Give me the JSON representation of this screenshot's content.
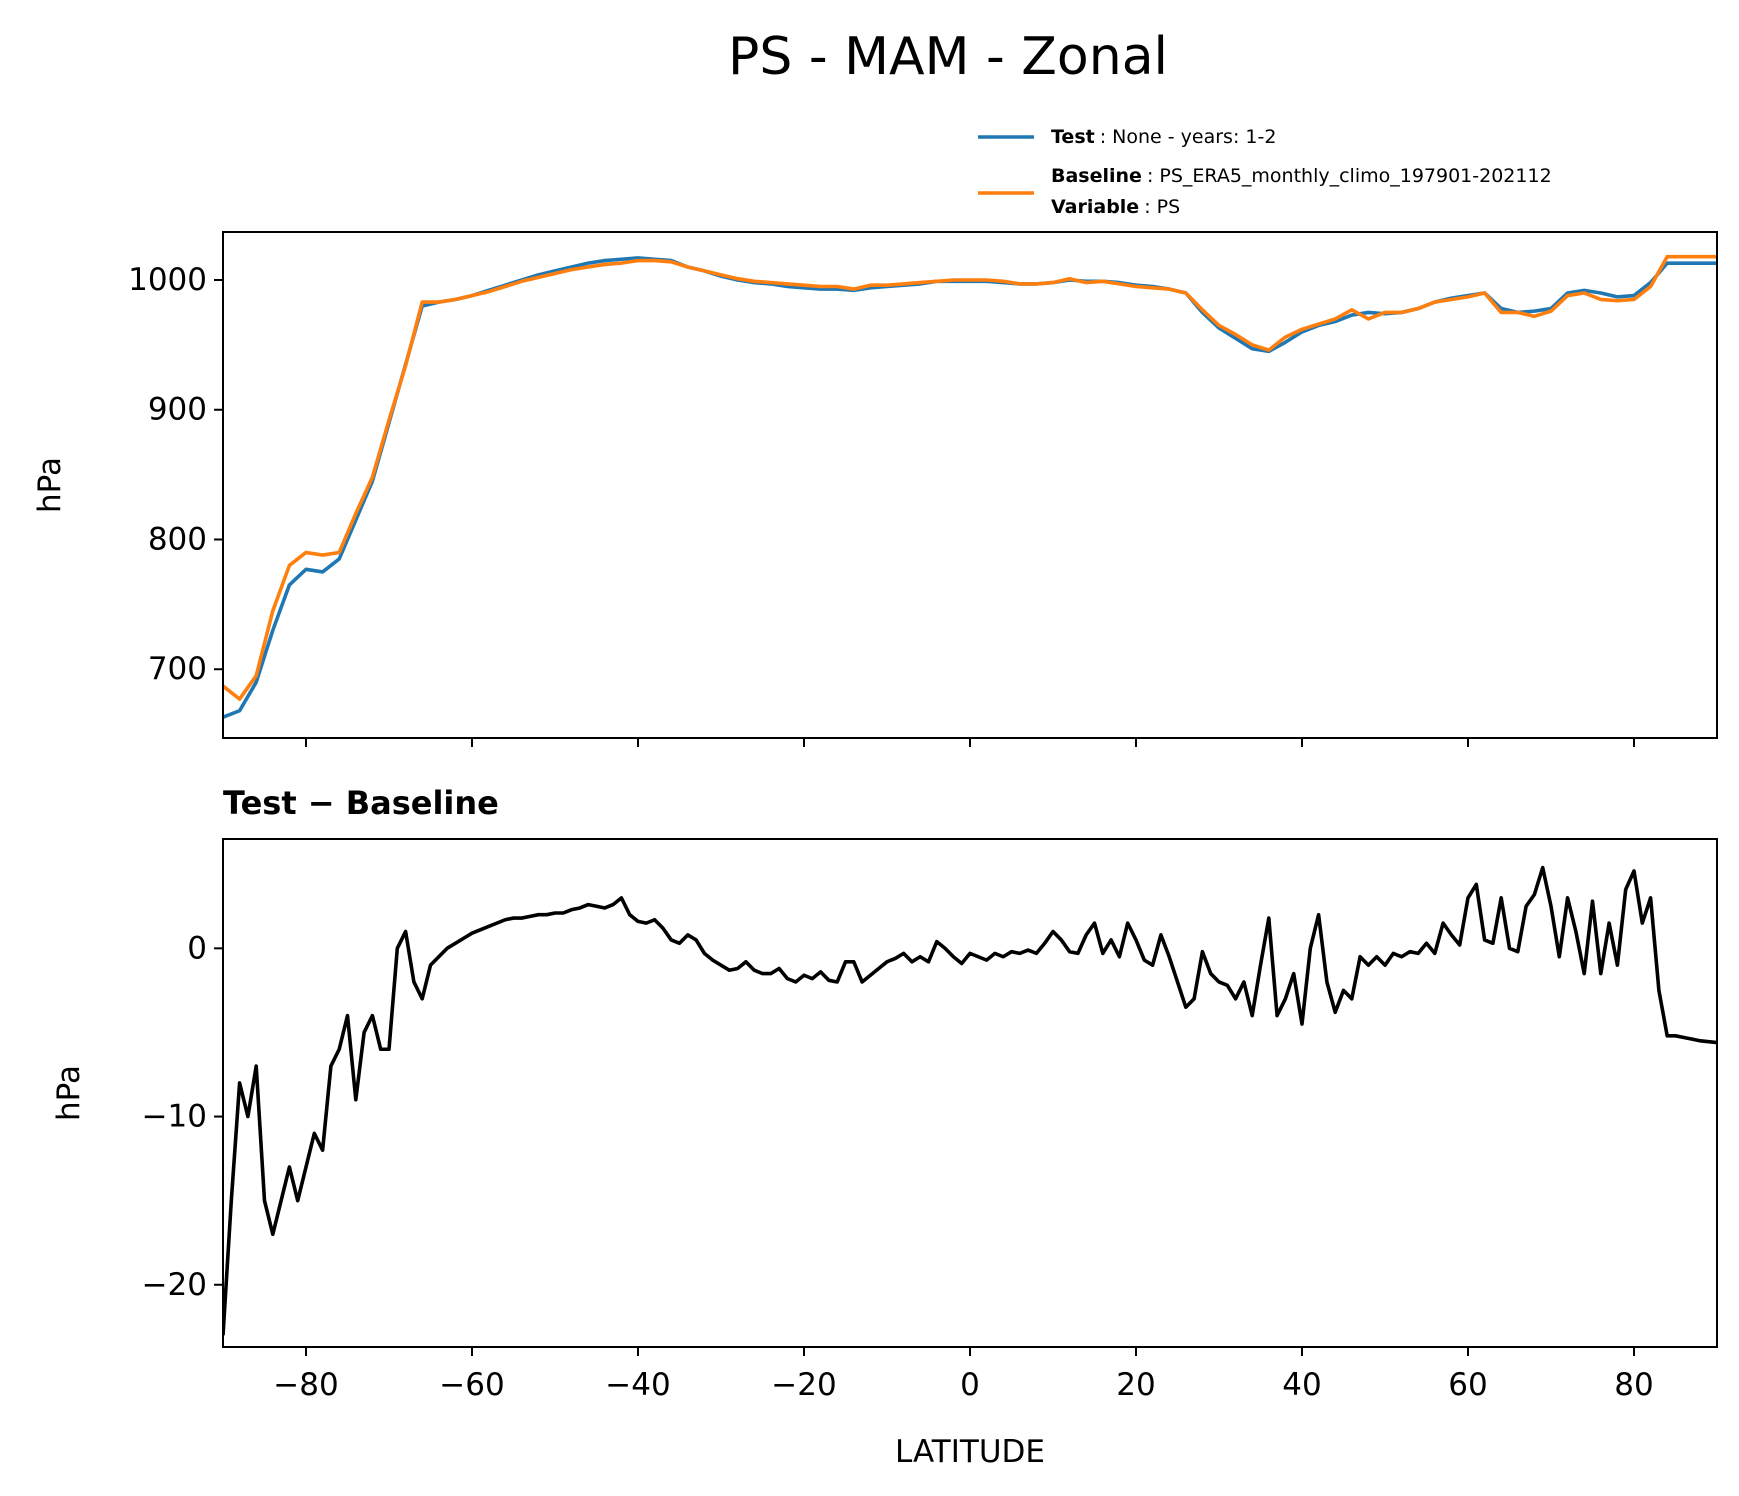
{
  "chart_data": [
    {
      "type": "line",
      "suptitle": "PS - MAM - Zonal",
      "ylabel": "hPa",
      "x": [
        -90,
        -88,
        -86,
        -84,
        -82,
        -80,
        -78,
        -76,
        -74,
        -72,
        -70,
        -68,
        -66,
        -64,
        -62,
        -60,
        -58,
        -56,
        -54,
        -52,
        -50,
        -48,
        -46,
        -44,
        -42,
        -40,
        -38,
        -36,
        -34,
        -32,
        -30,
        -28,
        -26,
        -24,
        -22,
        -20,
        -18,
        -16,
        -14,
        -12,
        -10,
        -8,
        -6,
        -4,
        -2,
        0,
        2,
        4,
        6,
        8,
        10,
        12,
        14,
        16,
        18,
        20,
        22,
        24,
        26,
        28,
        30,
        32,
        34,
        36,
        38,
        40,
        42,
        44,
        46,
        48,
        50,
        52,
        54,
        56,
        58,
        60,
        62,
        64,
        66,
        68,
        70,
        72,
        74,
        76,
        78,
        80,
        82,
        84,
        86,
        88,
        90
      ],
      "series": [
        {
          "name": "Test",
          "detail": ": None - years: 1-2",
          "color": "#1f77b4",
          "values": [
            663,
            668,
            690,
            730,
            765,
            777,
            775,
            785,
            815,
            845,
            890,
            935,
            980,
            983,
            985,
            988,
            992,
            996,
            1000,
            1004,
            1007,
            1010,
            1013,
            1015,
            1016,
            1017,
            1016,
            1015,
            1010,
            1007,
            1003,
            1000,
            998,
            997,
            995,
            994,
            993,
            993,
            992,
            994,
            995,
            996,
            997,
            999,
            999,
            999,
            999,
            998,
            997,
            997,
            998,
            1000,
            999,
            999,
            998,
            996,
            995,
            993,
            990,
            975,
            963,
            955,
            947,
            945,
            952,
            960,
            965,
            968,
            973,
            975,
            974,
            975,
            978,
            983,
            986,
            988,
            990,
            978,
            975,
            976,
            978,
            990,
            992,
            990,
            987,
            988,
            998,
            1013,
            1013,
            1013,
            1013
          ]
        },
        {
          "name": "Baseline",
          "detail": ": PS_ERA5_monthly_climo_197901-202112",
          "color": "#ff7f0e",
          "values": [
            687,
            677,
            695,
            745,
            780,
            790,
            788,
            790,
            820,
            848,
            892,
            934,
            983,
            983,
            985,
            988,
            991,
            995,
            999,
            1002,
            1005,
            1008,
            1010,
            1012,
            1013,
            1015,
            1015,
            1014,
            1010,
            1007,
            1004,
            1001,
            999,
            998,
            997,
            996,
            995,
            995,
            993,
            996,
            996,
            997,
            998,
            999,
            1000,
            1000,
            1000,
            999,
            997,
            997,
            998,
            1001,
            998,
            999,
            997,
            995,
            994,
            993,
            990,
            977,
            965,
            958,
            950,
            946,
            956,
            962,
            966,
            970,
            977,
            970,
            975,
            975,
            978,
            983,
            985,
            987,
            990,
            975,
            975,
            972,
            976,
            988,
            990,
            985,
            984,
            985,
            995,
            1018,
            1018,
            1018,
            1018
          ]
        }
      ],
      "variable_name": "Variable",
      "variable_detail": ": PS",
      "xlim": [
        -90,
        90
      ],
      "ylim": [
        647,
        1037
      ],
      "xticks": [
        -80,
        -60,
        -40,
        -20,
        0,
        20,
        40,
        60,
        80
      ],
      "yticks": [
        700,
        800,
        900,
        1000
      ]
    },
    {
      "type": "line",
      "title": "Test − Baseline",
      "ylabel": "hPa",
      "xlabel": "LATITUDE",
      "x": [
        -90,
        -89,
        -88,
        -87,
        -86,
        -85,
        -84,
        -83,
        -82,
        -81,
        -80,
        -79,
        -78,
        -77,
        -76,
        -75,
        -74,
        -73,
        -72,
        -71,
        -70,
        -69,
        -68,
        -67,
        -66,
        -65,
        -64,
        -63,
        -62,
        -61,
        -60,
        -59,
        -58,
        -57,
        -56,
        -55,
        -54,
        -53,
        -52,
        -51,
        -50,
        -49,
        -48,
        -47,
        -46,
        -45,
        -44,
        -43,
        -42,
        -41,
        -40,
        -39,
        -38,
        -37,
        -36,
        -35,
        -34,
        -33,
        -32,
        -31,
        -30,
        -29,
        -28,
        -27,
        -26,
        -25,
        -24,
        -23,
        -22,
        -21,
        -20,
        -19,
        -18,
        -17,
        -16,
        -15,
        -14,
        -13,
        -12,
        -11,
        -10,
        -9,
        -8,
        -7,
        -6,
        -5,
        -4,
        -3,
        -2,
        -1,
        0,
        1,
        2,
        3,
        4,
        5,
        6,
        7,
        8,
        9,
        10,
        11,
        12,
        13,
        14,
        15,
        16,
        17,
        18,
        19,
        20,
        21,
        22,
        23,
        24,
        25,
        26,
        27,
        28,
        29,
        30,
        31,
        32,
        33,
        34,
        35,
        36,
        37,
        38,
        39,
        40,
        41,
        42,
        43,
        44,
        45,
        46,
        47,
        48,
        49,
        50,
        51,
        52,
        53,
        54,
        55,
        56,
        57,
        58,
        59,
        60,
        61,
        62,
        63,
        64,
        65,
        66,
        67,
        68,
        69,
        70,
        71,
        72,
        73,
        74,
        75,
        76,
        77,
        78,
        79,
        80,
        81,
        82,
        83,
        84,
        85,
        86,
        87,
        88,
        89,
        90
      ],
      "series": [
        {
          "color": "#000000",
          "values": [
            -23,
            -15,
            -8,
            -10,
            -7,
            -15,
            -17,
            -15,
            -13,
            -15,
            -13,
            -11,
            -12,
            -7,
            -6,
            -4,
            -9,
            -5,
            -4,
            -6,
            -6,
            0,
            1,
            -2,
            -3,
            -1,
            -0.5,
            0,
            0.3,
            0.6,
            0.9,
            1.1,
            1.3,
            1.5,
            1.7,
            1.8,
            1.8,
            1.9,
            2,
            2,
            2.1,
            2.1,
            2.3,
            2.4,
            2.6,
            2.5,
            2.4,
            2.6,
            3,
            2,
            1.6,
            1.5,
            1.7,
            1.2,
            0.5,
            0.3,
            0.8,
            0.5,
            -0.3,
            -0.7,
            -1,
            -1.3,
            -1.2,
            -0.8,
            -1.3,
            -1.5,
            -1.5,
            -1.2,
            -1.8,
            -2,
            -1.6,
            -1.8,
            -1.4,
            -1.9,
            -2,
            -0.8,
            -0.8,
            -2,
            -1.6,
            -1.2,
            -0.8,
            -0.6,
            -0.3,
            -0.8,
            -0.5,
            -0.8,
            0.4,
            0,
            -0.5,
            -0.9,
            -0.3,
            -0.5,
            -0.7,
            -0.3,
            -0.5,
            -0.2,
            -0.3,
            -0.1,
            -0.3,
            0.3,
            1,
            0.5,
            -0.2,
            -0.3,
            0.8,
            1.5,
            -0.3,
            0.5,
            -0.5,
            1.5,
            0.5,
            -0.7,
            -1,
            0.8,
            -0.5,
            -2,
            -3.5,
            -3,
            -0.2,
            -1.5,
            -2,
            -2.2,
            -3,
            -2,
            -4,
            -1,
            1.8,
            -4,
            -3,
            -1.5,
            -4.5,
            0,
            2,
            -2,
            -3.8,
            -2.5,
            -3,
            -0.5,
            -1,
            -0.5,
            -1,
            -0.3,
            -0.5,
            -0.2,
            -0.3,
            0.3,
            -0.3,
            1.5,
            0.8,
            0.2,
            3,
            3.8,
            0.5,
            0.3,
            3,
            0,
            -0.2,
            2.5,
            3.2,
            4.8,
            2.5,
            -0.5,
            3,
            1,
            -1.5,
            2.8,
            -1.5,
            1.5,
            -1,
            3.5,
            4.6,
            1.5,
            3,
            -2.5,
            -5.2,
            -5.2,
            -5.3,
            -5.4,
            -5.5,
            -5.55,
            -5.6
          ]
        }
      ],
      "xlim": [
        -90,
        90
      ],
      "ylim": [
        -23.7,
        6.5
      ],
      "xticks": [
        {
          "value": -80,
          "label": "−80"
        },
        {
          "value": -60,
          "label": "−60"
        },
        {
          "value": -40,
          "label": "−40"
        },
        {
          "value": -20,
          "label": "−20"
        },
        0,
        20,
        40,
        60,
        80
      ],
      "yticks": [
        {
          "value": -20,
          "label": "−20"
        },
        {
          "value": -10,
          "label": "−10"
        },
        0
      ]
    }
  ]
}
